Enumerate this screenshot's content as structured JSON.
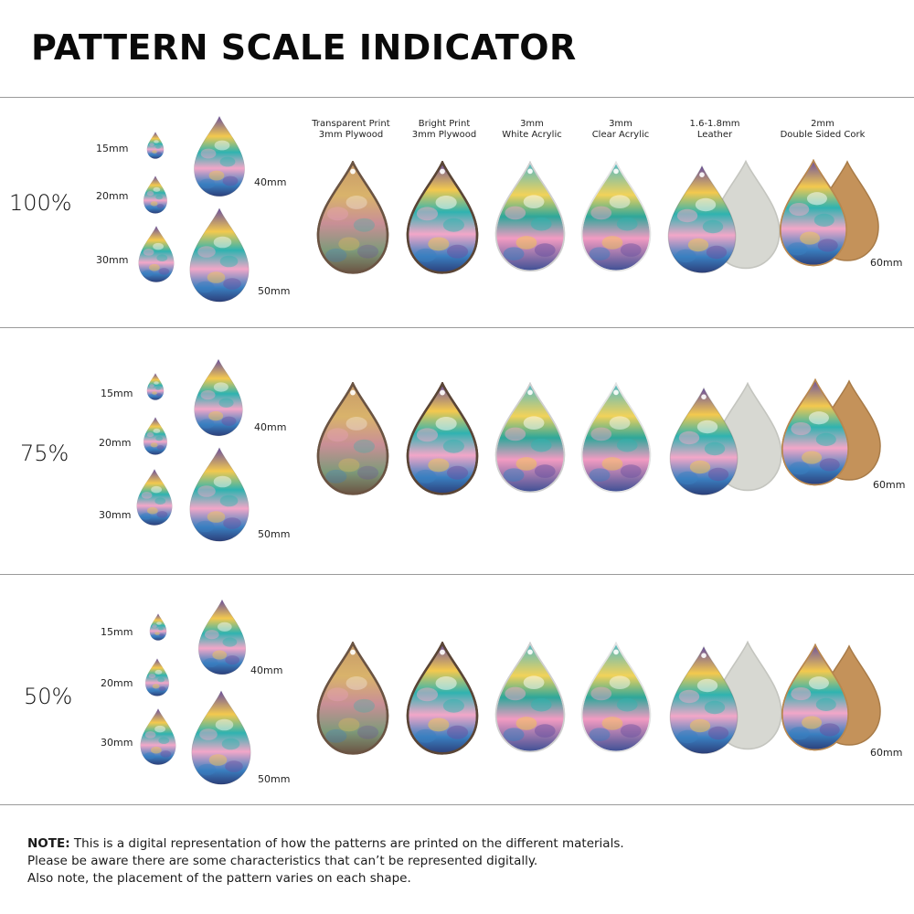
{
  "title": "PATTERN SCALE INDICATOR",
  "columns": [
    {
      "line1": "Transparent Print",
      "line2": "3mm Plywood"
    },
    {
      "line1": "Bright Print",
      "line2": "3mm Plywood"
    },
    {
      "line1": "3mm",
      "line2": "White Acrylic"
    },
    {
      "line1": "3mm",
      "line2": "Clear Acrylic"
    },
    {
      "line1": "1.6-1.8mm",
      "line2": "Leather"
    },
    {
      "line1": "2mm",
      "line2": "Double Sided Cork"
    }
  ],
  "sections": [
    {
      "percent": "100%",
      "size_labels": {
        "s15": "15mm",
        "s20": "20mm",
        "s30": "30mm",
        "s40": "40mm",
        "s50": "50mm",
        "s60": "60mm"
      }
    },
    {
      "percent": "75%",
      "size_labels": {
        "s15": "15mm",
        "s20": "20mm",
        "s30": "30mm",
        "s40": "40mm",
        "s50": "50mm",
        "s60": "60mm"
      }
    },
    {
      "percent": "50%",
      "size_labels": {
        "s15": "15mm",
        "s20": "20mm",
        "s30": "30mm",
        "s40": "40mm",
        "s50": "50mm",
        "s60": "60mm"
      }
    }
  ],
  "note": {
    "label": "NOTE:",
    "line1": " This is a digital representation of how the patterns are printed on the different materials.",
    "line2": "Please be aware there are some characteristics that can’t be represented digitally.",
    "line3": "Also note, the placement of the pattern varies on each shape."
  },
  "colors": {
    "rule": "#9a9a9a",
    "pattern_teal": "#2fb3b0",
    "pattern_pink": "#f2a7c8",
    "pattern_purple": "#6a4fa0",
    "pattern_yellow": "#f3c94e",
    "pattern_navy": "#2c3f7a",
    "leather": "#d7d8d2",
    "cork": "#c4925a",
    "plywood_edge": "#6b5443"
  }
}
